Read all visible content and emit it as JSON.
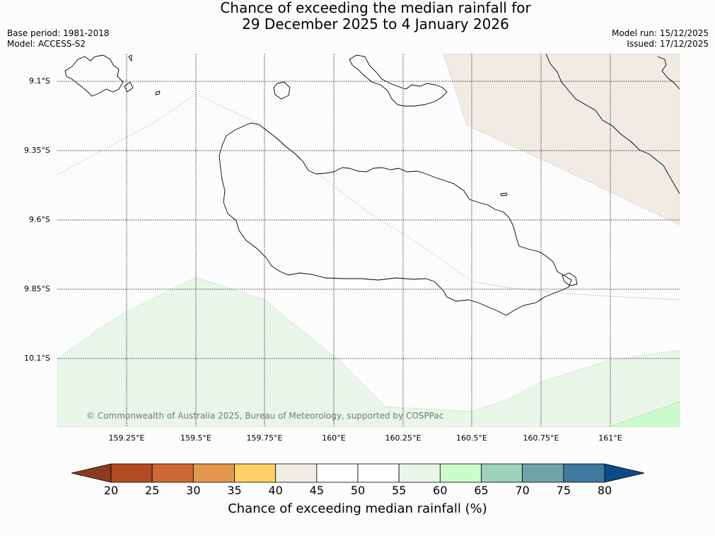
{
  "title": {
    "line1": "Chance of exceeding the median rainfall for",
    "line2": "29 December 2025 to 4 January 2026"
  },
  "meta_left": {
    "base_period": "Base period: 1981-2018",
    "model": "Model: ACCESS-S2"
  },
  "meta_right": {
    "model_run": "Model run: 15/12/2025",
    "issued": "Issued: 17/12/2025"
  },
  "map": {
    "lat_labels": [
      "9.1°S",
      "9.35°S",
      "9.6°S",
      "9.85°S",
      "10.1°S"
    ],
    "lon_labels": [
      "159.25°E",
      "159.5°E",
      "159.75°E",
      "160°E",
      "160.25°E",
      "160.5°E",
      "160.75°E",
      "161°E"
    ],
    "regions": [
      {
        "category": "40-45",
        "location": "north-east"
      },
      {
        "category": "55-60",
        "location": "south"
      },
      {
        "category": "60-65",
        "location": "south-east corner"
      }
    ],
    "copyright": "© Commonwealth of Australia 2025, Bureau of Meteorology, supported by COSPPac"
  },
  "colorbar": {
    "title": "Chance of exceeding median rainfall (%)",
    "ticks": [
      "20",
      "25",
      "30",
      "35",
      "40",
      "45",
      "50",
      "55",
      "60",
      "65",
      "70",
      "75",
      "80"
    ],
    "colors": {
      "below": "#8e3a20",
      "bins": [
        "#b24a26",
        "#cf6837",
        "#e3984b",
        "#ffd066",
        "#f0ebe4",
        "#ffffff",
        "#ffffff",
        "#eaf5ea",
        "#cbfbcb",
        "#9dd2bd",
        "#6fa5a7",
        "#3d7a9d"
      ],
      "above": "#0d4a8a"
    }
  }
}
